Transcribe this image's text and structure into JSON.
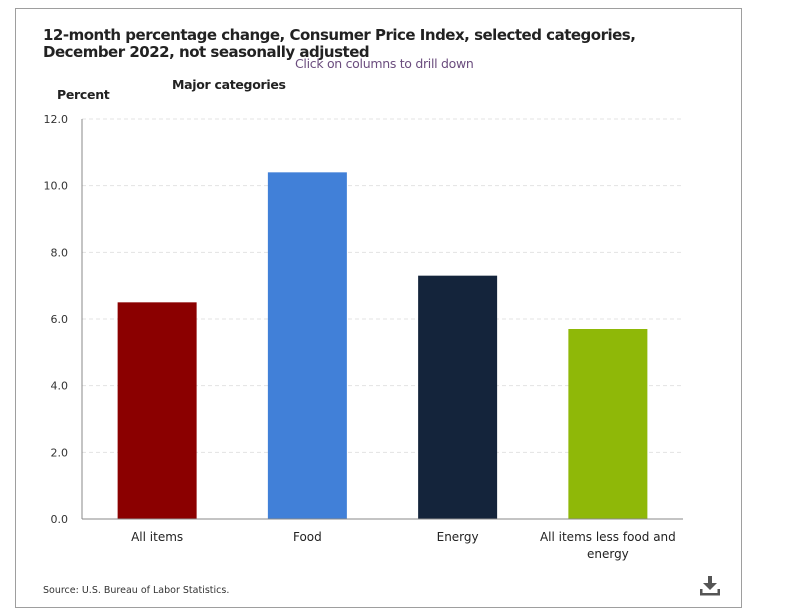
{
  "chart_data": {
    "type": "bar",
    "title": "12-month percentage change, Consumer Price Index, selected categories, December 2022, not seasonally adjusted",
    "subtitle": "Click on columns to drill down",
    "legend_title": "Major categories",
    "xlabel": "",
    "ylabel": "Percent",
    "ylim": [
      0,
      12
    ],
    "yticks": [
      "0.0",
      "2.0",
      "4.0",
      "6.0",
      "8.0",
      "10.0",
      "12.0"
    ],
    "ytick_values": [
      0,
      2,
      4,
      6,
      8,
      10,
      12
    ],
    "grid": true,
    "categories": [
      "All items",
      "Food",
      "Energy",
      "All items less food and energy"
    ],
    "category_lines": [
      [
        "All items"
      ],
      [
        "Food"
      ],
      [
        "Energy"
      ],
      [
        "All items less food and",
        "energy"
      ]
    ],
    "values": [
      6.5,
      10.4,
      7.3,
      5.7
    ],
    "colors": [
      "#8b0000",
      "#4180d8",
      "#14243b",
      "#8fb808"
    ],
    "source": "Source: U.S. Bureau of Labor Statistics."
  },
  "icons": {
    "download": "download-icon"
  }
}
